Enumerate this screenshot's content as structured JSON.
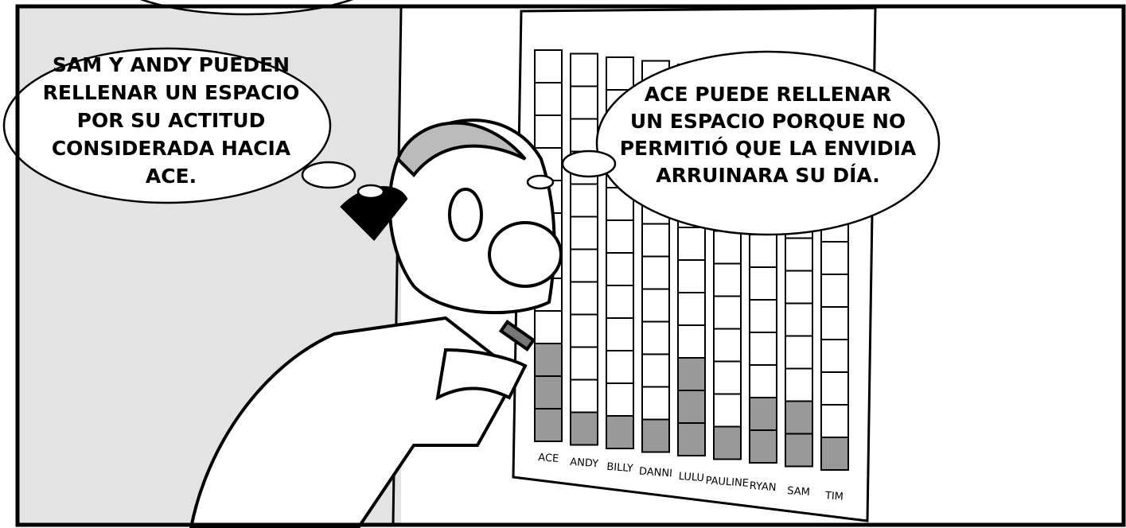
{
  "bubbles": [
    {
      "lines": [
        "SAM Y ANDY PUEDEN",
        "RELLENAR UN ESPACIO",
        "POR SU ACTITUD",
        "CONSIDERADA HACIA",
        "ACE."
      ]
    },
    {
      "lines": [
        "ACE PUEDE RELLENAR",
        "UN ESPACIO PORQUE NO",
        "PERMITIÓ QUE LA ENVIDIA",
        "ARRUINARA SU DÍA."
      ]
    }
  ],
  "board": {
    "columns": [
      {
        "name": "ACE",
        "filled": 3
      },
      {
        "name": "ANDY",
        "filled": 1
      },
      {
        "name": "BILLY",
        "filled": 1
      },
      {
        "name": "DANNI",
        "filled": 1
      },
      {
        "name": "LULU",
        "filled": 3
      },
      {
        "name": "PAULINE",
        "filled": 1
      },
      {
        "name": "RYAN",
        "filled": 2
      },
      {
        "name": "SAM",
        "filled": 2
      },
      {
        "name": "TIM",
        "filled": 1
      }
    ]
  }
}
